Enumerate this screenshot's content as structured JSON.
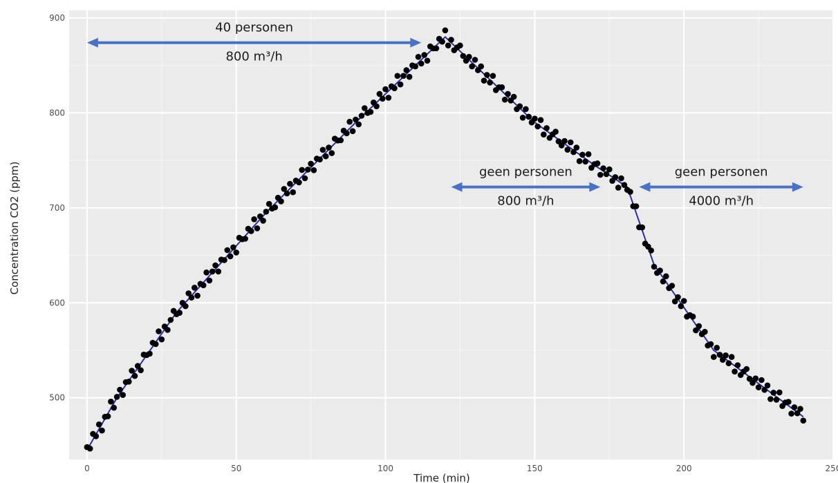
{
  "chart_data": {
    "type": "scatter",
    "title": "",
    "xlabel": "Time (min)",
    "ylabel": "Concentration CO2 (ppm)",
    "xlim": [
      -6,
      250
    ],
    "ylim": [
      435,
      908
    ],
    "x_ticks": [
      0,
      50,
      100,
      150,
      200,
      250
    ],
    "y_ticks": [
      500,
      600,
      700,
      800,
      900
    ],
    "grid": true,
    "background": "#ebebeb",
    "point_color": "#000000",
    "fit_line_color": "#2b2bb0",
    "annotation_color": "#4a72c4",
    "fit_line": [
      {
        "x": 0,
        "y": 445
      },
      {
        "x": 10,
        "y": 500
      },
      {
        "x": 30,
        "y": 590
      },
      {
        "x": 60,
        "y": 695
      },
      {
        "x": 90,
        "y": 790
      },
      {
        "x": 120,
        "y": 880
      },
      {
        "x": 150,
        "y": 790
      },
      {
        "x": 170,
        "y": 745
      },
      {
        "x": 181,
        "y": 722
      },
      {
        "x": 190,
        "y": 640
      },
      {
        "x": 210,
        "y": 550
      },
      {
        "x": 240,
        "y": 480
      }
    ],
    "noise": [
      3,
      -4,
      6,
      -2,
      5,
      -7,
      2,
      -3,
      7,
      -5,
      1,
      4,
      -6,
      3,
      -1,
      6,
      -4,
      2,
      -7,
      5,
      0,
      -3,
      4,
      -2,
      7,
      -6,
      3,
      -5,
      1,
      6,
      -2,
      -4
    ],
    "annotations": [
      {
        "x_from": 0,
        "x_to": 112,
        "y": 874,
        "label_top": "40 personen",
        "label_bottom": "800 m³/h"
      },
      {
        "x_from": 122,
        "x_to": 172,
        "y": 722,
        "label_top": "geen personen",
        "label_bottom": "800 m³/h"
      },
      {
        "x_from": 185,
        "x_to": 240,
        "y": 722,
        "label_top": "geen personen",
        "label_bottom": "4000 m³/h"
      }
    ]
  }
}
